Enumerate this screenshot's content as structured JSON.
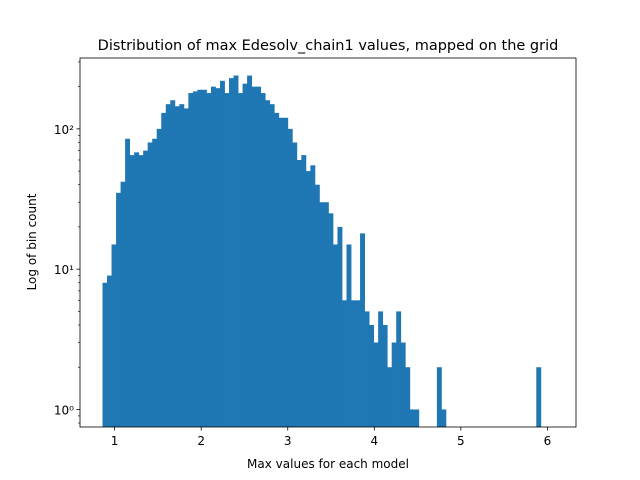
{
  "chart_data": {
    "type": "bar",
    "title": "Distribution of max Edesolv_chain1 values, mapped on the grid",
    "xlabel": "Max values for each model",
    "ylabel": "Log of bin count",
    "yscale": "log",
    "xlim": [
      0.6,
      6.33
    ],
    "ylim": [
      0.75,
      320
    ],
    "xticks": [
      1,
      2,
      3,
      4,
      5,
      6
    ],
    "xtick_labels": [
      "1",
      "2",
      "3",
      "4",
      "5",
      "6"
    ],
    "yticks": [
      1,
      10,
      100
    ],
    "ytick_labels": [
      "10⁰",
      "10¹",
      "10²"
    ],
    "grid": false,
    "bar_color": "#1f77b4",
    "bins": {
      "start": 0.86,
      "width": 0.0522,
      "counts": [
        8,
        9,
        15,
        35,
        42,
        85,
        65,
        68,
        65,
        70,
        80,
        85,
        100,
        130,
        150,
        160,
        145,
        150,
        140,
        180,
        185,
        190,
        190,
        180,
        200,
        195,
        220,
        180,
        230,
        240,
        180,
        210,
        240,
        200,
        200,
        180,
        160,
        150,
        130,
        120,
        120,
        100,
        80,
        60,
        65,
        50,
        55,
        40,
        30,
        30,
        25,
        15,
        20,
        6,
        15,
        6,
        6,
        18,
        5,
        4,
        3,
        5,
        4,
        2,
        3,
        5,
        3,
        2,
        1,
        1,
        0,
        0,
        0,
        0,
        2,
        1,
        0,
        0,
        0,
        0,
        0,
        0,
        0,
        0,
        0,
        0,
        0,
        0,
        0,
        0,
        0,
        0,
        0,
        0,
        0,
        0,
        2
      ]
    }
  }
}
